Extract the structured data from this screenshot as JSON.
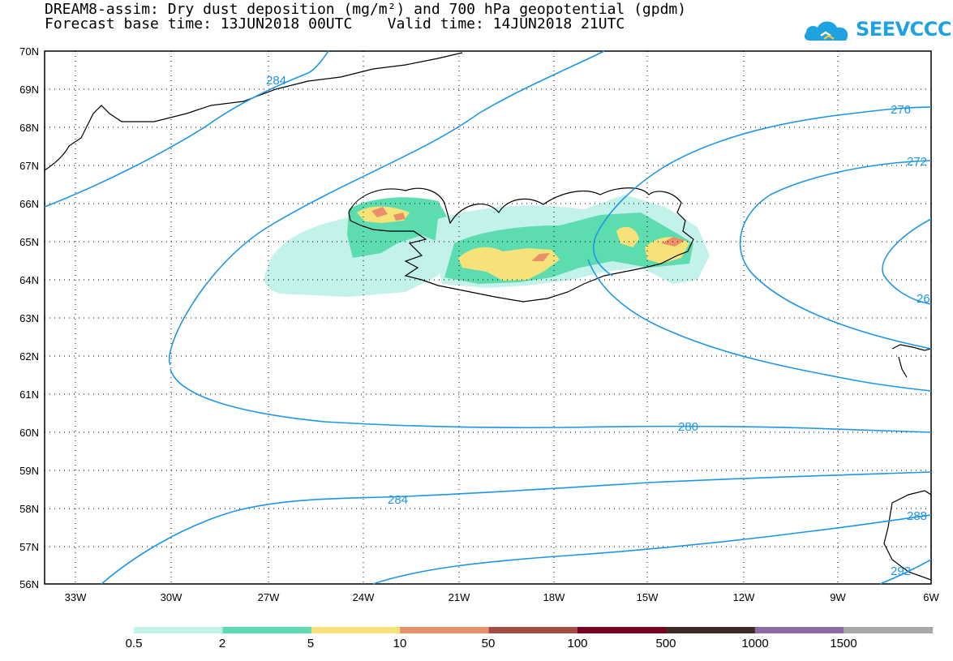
{
  "title": {
    "line1": "DREAM8-assim: Dry dust deposition (mg/m²) and 700 hPa geopotential (gpdm)",
    "line2": "Forecast base time: 13JUN2018 00UTC    Valid time: 14JUN2018 21UTC"
  },
  "logo": {
    "text": "SEEVCCC",
    "icon": "cloud-icon",
    "color": "#1ea3e0"
  },
  "axes": {
    "lat_labels": [
      "70N",
      "69N",
      "68N",
      "67N",
      "66N",
      "65N",
      "64N",
      "63N",
      "62N",
      "61N",
      "60N",
      "59N",
      "58N",
      "57N",
      "56N"
    ],
    "lon_labels": [
      "33W",
      "30W",
      "27W",
      "24W",
      "21W",
      "18W",
      "15W",
      "12W",
      "9W",
      "6W"
    ]
  },
  "contour_labels": [
    "284",
    "276",
    "272",
    "26",
    "280",
    "284",
    "288",
    "292"
  ],
  "colors": {
    "contour": "#1e96e6",
    "coast": "#000000"
  },
  "legend": {
    "labels": [
      "0.5",
      "2",
      "5",
      "10",
      "50",
      "100",
      "500",
      "1000",
      "1500"
    ],
    "colors": [
      "#c3f2ea",
      "#5ddcb0",
      "#f7e27a",
      "#e98f6a",
      "#a24c44",
      "#7a0021",
      "#3b2b20",
      "#8d6aa5",
      "#a8a8a8"
    ]
  }
}
